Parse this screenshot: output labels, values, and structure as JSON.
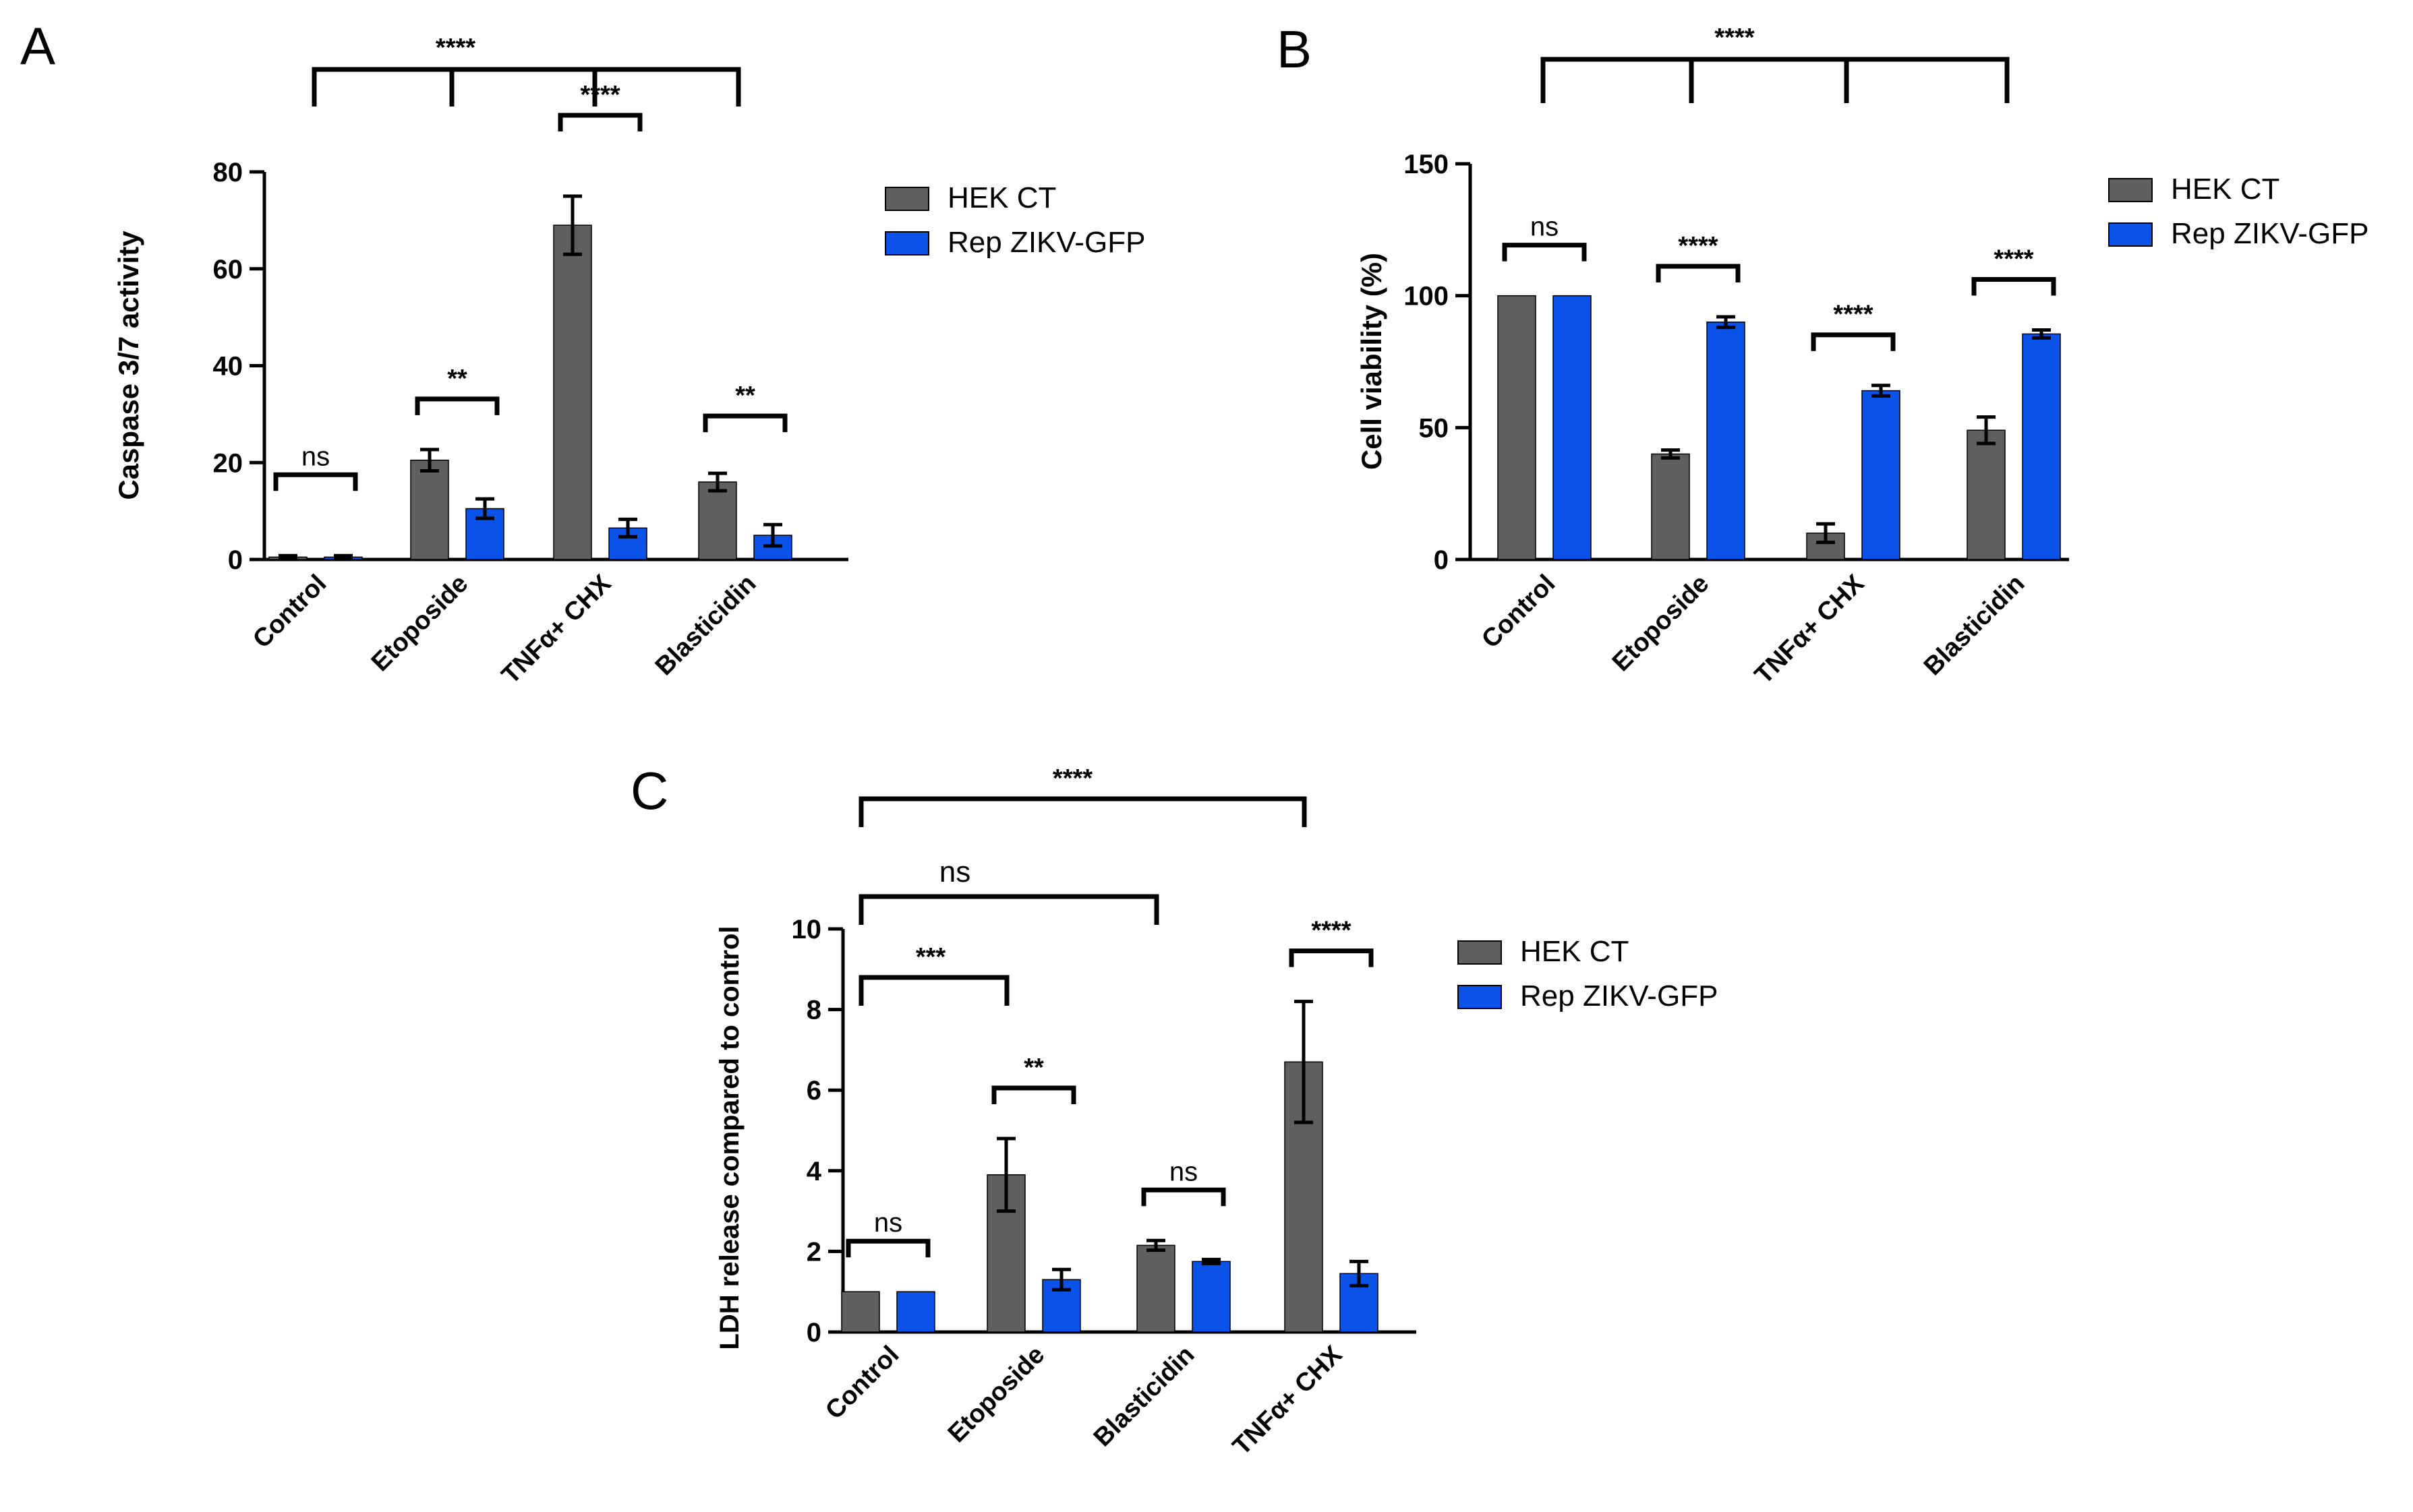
{
  "legend": {
    "hek": "HEK CT",
    "rep": "Rep ZIKV-GFP"
  },
  "colors": {
    "hek": "#5f5f5f",
    "rep": "#0b52e8"
  },
  "chart_data": [
    {
      "panel": "A",
      "type": "bar",
      "ylabel": "Caspase 3/7 activity",
      "ylim": [
        0,
        80
      ],
      "yticks": [
        0,
        20,
        40,
        60,
        80
      ],
      "categories": [
        "Control",
        "Etoposide",
        "TNFα+ CHX",
        "Blasticidin"
      ],
      "series": [
        {
          "name": "HEK CT",
          "values": [
            0.5,
            20.5,
            69,
            16
          ],
          "errors": [
            0.3,
            2.2,
            6,
            1.8
          ]
        },
        {
          "name": "Rep ZIKV-GFP",
          "values": [
            0.5,
            10.5,
            6.5,
            5
          ],
          "errors": [
            0.3,
            2,
            1.8,
            2.2
          ]
        }
      ],
      "pair_significance": [
        "ns",
        "**",
        "****",
        "**"
      ],
      "group_significance": "****"
    },
    {
      "panel": "B",
      "type": "bar",
      "ylabel": "Cell viability (%)",
      "ylim": [
        0,
        150
      ],
      "yticks": [
        0,
        50,
        100,
        150
      ],
      "categories": [
        "Control",
        "Etoposide",
        "TNFα+ CHX",
        "Blasticidin"
      ],
      "series": [
        {
          "name": "HEK CT",
          "values": [
            100,
            40,
            10,
            49
          ],
          "errors": [
            0,
            1.5,
            3.5,
            5
          ]
        },
        {
          "name": "Rep ZIKV-GFP",
          "values": [
            100,
            90,
            64,
            85.5
          ],
          "errors": [
            0,
            2,
            2,
            1.5
          ]
        }
      ],
      "pair_significance": [
        "ns",
        "****",
        "****",
        "****"
      ],
      "group_significance": "****"
    },
    {
      "panel": "C",
      "type": "bar",
      "ylabel": "LDH release compared to control",
      "ylim": [
        0,
        10
      ],
      "yticks": [
        0,
        2,
        4,
        6,
        8,
        10
      ],
      "categories": [
        "Control",
        "Etoposide",
        "Blasticidin",
        "TNFα+ CHX"
      ],
      "series": [
        {
          "name": "HEK CT",
          "values": [
            1,
            3.9,
            2.15,
            6.7
          ],
          "errors": [
            0,
            0.9,
            0.12,
            1.5
          ]
        },
        {
          "name": "Rep ZIKV-GFP",
          "values": [
            1,
            1.3,
            1.75,
            1.45
          ],
          "errors": [
            0,
            0.25,
            0.05,
            0.3
          ]
        }
      ],
      "pair_significance": [
        "ns",
        "**",
        "ns",
        "****"
      ],
      "comparisons": [
        {
          "label": "***",
          "from": "Control",
          "to": "Etoposide"
        },
        {
          "label": "ns",
          "from": "Control",
          "to": "Blasticidin"
        },
        {
          "label": "****",
          "from": "Control",
          "to": "TNFα+ CHX"
        }
      ]
    }
  ]
}
